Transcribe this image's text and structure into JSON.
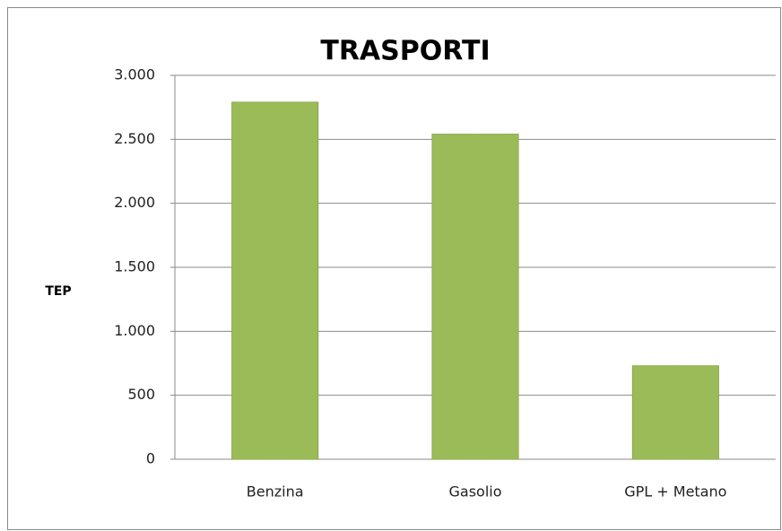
{
  "chart_data": {
    "type": "bar",
    "title": "TRASPORTI",
    "y_label": "TEP",
    "categories": [
      "Benzina",
      "Gasolio",
      "GPL + Metano"
    ],
    "values": [
      2790,
      2540,
      730
    ],
    "color": "#9bbb59",
    "ylim": [
      0,
      3000
    ],
    "yticks": [
      0,
      500,
      {
        "value": 1000,
        "label": "1.000"
      },
      {
        "value": 1500,
        "label": "1.500"
      },
      {
        "value": 2000,
        "label": "2.000"
      },
      {
        "value": 2500,
        "label": "2.500"
      },
      {
        "value": 3000,
        "label": "3.000"
      }
    ],
    "grid": true
  }
}
